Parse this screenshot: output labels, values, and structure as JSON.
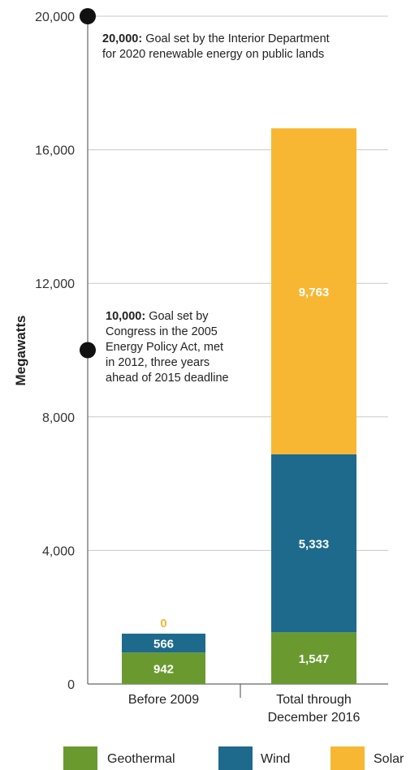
{
  "chart_data": {
    "type": "bar",
    "stacked": true,
    "ylabel": "Megawatts",
    "ylim": [
      0,
      20000
    ],
    "yticks": [
      0,
      4000,
      8000,
      12000,
      16000,
      20000
    ],
    "ytick_labels": [
      "0",
      "4,000",
      "8,000",
      "12,000",
      "16,000",
      "20,000"
    ],
    "grid": true,
    "legend_position": "bottom",
    "categories": [
      "Before 2009",
      "Total through December 2016"
    ],
    "category_lines": [
      [
        "Before 2009"
      ],
      [
        "Total through",
        "December 2016"
      ]
    ],
    "series": [
      {
        "name": "Geothermal",
        "color": "#6a9a2f",
        "values": [
          942,
          1547
        ],
        "labels": [
          "942",
          "1,547"
        ]
      },
      {
        "name": "Wind",
        "color": "#1e6a8c",
        "values": [
          566,
          5333
        ],
        "labels": [
          "566",
          "5,333"
        ]
      },
      {
        "name": "Solar",
        "color": "#f8b733",
        "values": [
          0,
          9763
        ],
        "labels": [
          "0",
          "9,763"
        ]
      }
    ],
    "annotations": [
      {
        "value": 20000,
        "bold": "20,000:",
        "lines": [
          " Goal set by the Interior Department",
          "for 2020 renewable energy on public lands"
        ]
      },
      {
        "value": 10000,
        "bold": "10,000:",
        "lines": [
          " Goal set by",
          "Congress in the 2005",
          "Energy Policy Act, met",
          "in 2012, three years",
          "ahead of 2015 deadline"
        ]
      }
    ]
  }
}
